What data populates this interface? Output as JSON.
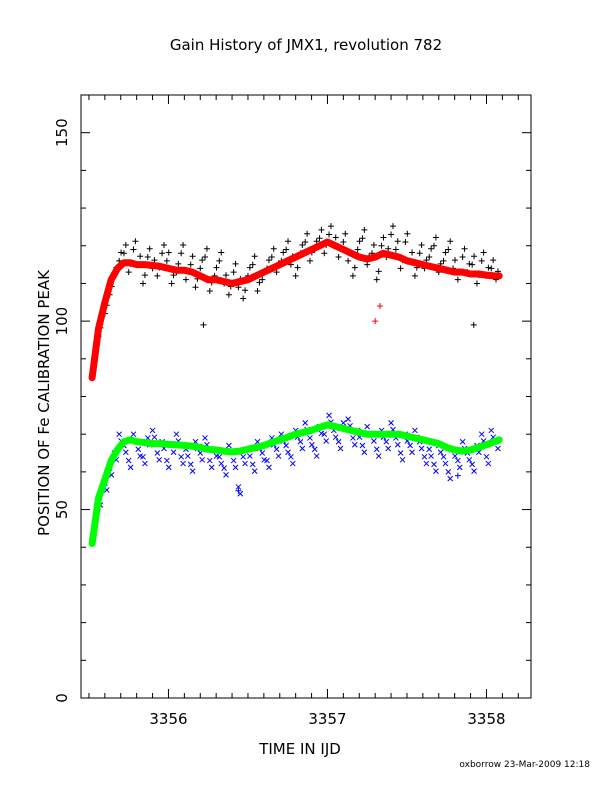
{
  "chart_data": {
    "type": "scatter",
    "title": "Gain History of JMX1, revolution 782",
    "xlabel": "TIME IN IJD",
    "ylabel": "POSITION OF Fe CALIBRATION PEAK",
    "xlim": [
      3355.45,
      3358.28
    ],
    "ylim": [
      0,
      160
    ],
    "xticks": [
      3356,
      3357,
      3358
    ],
    "yticks": [
      0,
      50,
      100,
      150
    ],
    "grid": false,
    "series": [
      {
        "marker": "+",
        "color": "#000000",
        "x": [
          3355.56,
          3355.6,
          3355.63,
          3355.66,
          3355.69,
          3355.72,
          3355.75,
          3355.78,
          3355.81,
          3355.84,
          3355.87,
          3355.9,
          3355.93,
          3355.96,
          3355.99,
          3356.02,
          3356.05,
          3356.08,
          3356.11,
          3356.14,
          3356.17,
          3356.2,
          3356.23,
          3356.26,
          3356.29,
          3356.32,
          3356.35,
          3356.38,
          3356.41,
          3356.44,
          3356.47,
          3356.5,
          3356.53,
          3356.56,
          3356.59,
          3356.62,
          3356.65,
          3356.68,
          3356.71,
          3356.74,
          3356.77,
          3356.8,
          3356.83,
          3356.86,
          3356.89,
          3356.92,
          3356.95,
          3356.98,
          3357.01,
          3357.04,
          3357.07,
          3357.1,
          3357.13,
          3357.16,
          3357.19,
          3357.22,
          3357.25,
          3357.28,
          3357.31,
          3357.34,
          3357.37,
          3357.4,
          3357.43,
          3357.46,
          3357.49,
          3357.52,
          3357.55,
          3357.58,
          3357.61,
          3357.64,
          3357.67,
          3357.7,
          3357.73,
          3357.76,
          3357.79,
          3357.82,
          3357.85,
          3357.88,
          3357.91,
          3357.94,
          3357.97,
          3358.0,
          3358.03,
          3358.06
        ],
        "y": [
          96,
          102,
          107,
          112,
          116,
          118,
          113,
          119,
          115,
          110,
          117,
          114,
          112,
          118,
          116,
          110,
          113,
          118,
          111,
          115,
          109,
          114,
          117,
          108,
          112,
          116,
          110,
          107,
          113,
          109,
          106,
          112,
          115,
          108,
          111,
          114,
          117,
          113,
          116,
          119,
          115,
          112,
          118,
          121,
          116,
          119,
          122,
          118,
          123,
          120,
          117,
          121,
          116,
          112,
          119,
          122,
          115,
          118,
          111,
          120,
          117,
          123,
          119,
          114,
          121,
          116,
          112,
          118,
          114,
          117,
          120,
          113,
          116,
          119,
          114,
          111,
          117,
          113,
          115,
          110,
          116,
          112,
          114,
          111
        ]
      },
      {
        "marker": "x",
        "color": "#0000ff",
        "x": [
          3355.56,
          3355.6,
          3355.63,
          3355.66,
          3355.69,
          3355.72,
          3355.75,
          3355.78,
          3355.81,
          3355.84,
          3355.87,
          3355.9,
          3355.93,
          3355.96,
          3355.99,
          3356.02,
          3356.05,
          3356.08,
          3356.11,
          3356.14,
          3356.17,
          3356.2,
          3356.23,
          3356.26,
          3356.29,
          3356.32,
          3356.35,
          3356.38,
          3356.41,
          3356.44,
          3356.47,
          3356.5,
          3356.53,
          3356.56,
          3356.59,
          3356.62,
          3356.65,
          3356.68,
          3356.71,
          3356.74,
          3356.77,
          3356.8,
          3356.83,
          3356.86,
          3356.89,
          3356.92,
          3356.95,
          3356.98,
          3357.01,
          3357.04,
          3357.07,
          3357.1,
          3357.13,
          3357.16,
          3357.19,
          3357.22,
          3357.25,
          3357.28,
          3357.31,
          3357.34,
          3357.37,
          3357.4,
          3357.43,
          3357.46,
          3357.49,
          3357.52,
          3357.55,
          3357.58,
          3357.61,
          3357.64,
          3357.67,
          3357.7,
          3357.73,
          3357.76,
          3357.79,
          3357.82,
          3357.85,
          3357.88,
          3357.91,
          3357.94,
          3357.97,
          3358.0,
          3358.03,
          3358.06
        ],
        "y": [
          53,
          57,
          61,
          65,
          70,
          67,
          63,
          70,
          66,
          64,
          69,
          71,
          65,
          68,
          63,
          67,
          70,
          64,
          66,
          62,
          68,
          65,
          69,
          63,
          66,
          64,
          61,
          67,
          63,
          56,
          64,
          66,
          62,
          68,
          65,
          63,
          69,
          66,
          70,
          67,
          64,
          71,
          68,
          73,
          69,
          66,
          72,
          70,
          75,
          71,
          68,
          73,
          74,
          69,
          71,
          67,
          72,
          70,
          66,
          71,
          68,
          73,
          69,
          65,
          70,
          67,
          71,
          68,
          64,
          66,
          62,
          67,
          64,
          60,
          66,
          63,
          68,
          65,
          62,
          67,
          70,
          64,
          71,
          68
        ]
      },
      {
        "marker": "filled",
        "color": "#ff0000",
        "x": [
          3355.52,
          3355.56,
          3355.6,
          3355.64,
          3355.68,
          3355.72,
          3355.76,
          3355.8,
          3355.85,
          3355.9,
          3355.95,
          3356.0,
          3356.05,
          3356.1,
          3356.15,
          3356.2,
          3356.25,
          3356.3,
          3356.35,
          3356.4,
          3356.45,
          3356.5,
          3356.55,
          3356.6,
          3356.65,
          3356.7,
          3356.75,
          3356.8,
          3356.85,
          3356.9,
          3356.95,
          3357.0,
          3357.05,
          3357.1,
          3357.15,
          3357.2,
          3357.25,
          3357.3,
          3357.35,
          3357.4,
          3357.45,
          3357.5,
          3357.55,
          3357.6,
          3357.65,
          3357.7,
          3357.75,
          3357.8,
          3357.85,
          3357.9,
          3357.95,
          3358.0,
          3358.05,
          3358.08
        ],
        "y": [
          85,
          98,
          105,
          111,
          114,
          115.5,
          115.5,
          115,
          115,
          114.8,
          114.5,
          114,
          113.5,
          113.5,
          113,
          112,
          111,
          111,
          110.5,
          110,
          110.5,
          111,
          112,
          113,
          114,
          115,
          116,
          117,
          118,
          119,
          120,
          121,
          120,
          119,
          118,
          117,
          116.5,
          117,
          118,
          117.5,
          117,
          116,
          115.5,
          115,
          114.5,
          114,
          113.5,
          113,
          113,
          112.5,
          112.5,
          112.2,
          112,
          112
        ]
      },
      {
        "marker": "filled",
        "color": "#00ff00",
        "x": [
          3355.52,
          3355.56,
          3355.6,
          3355.64,
          3355.68,
          3355.72,
          3355.76,
          3355.8,
          3355.85,
          3355.9,
          3355.95,
          3356.0,
          3356.05,
          3356.1,
          3356.15,
          3356.2,
          3356.25,
          3356.3,
          3356.35,
          3356.4,
          3356.45,
          3356.5,
          3356.55,
          3356.6,
          3356.65,
          3356.7,
          3356.75,
          3356.8,
          3356.85,
          3356.9,
          3356.95,
          3357.0,
          3357.05,
          3357.1,
          3357.15,
          3357.2,
          3357.25,
          3357.3,
          3357.35,
          3357.4,
          3357.45,
          3357.5,
          3357.55,
          3357.6,
          3357.65,
          3357.7,
          3357.75,
          3357.8,
          3357.85,
          3357.9,
          3357.95,
          3358.0,
          3358.05,
          3358.08
        ],
        "y": [
          41,
          53,
          58,
          63,
          66,
          68,
          68.5,
          68,
          67.8,
          67.5,
          67.5,
          67.3,
          67.2,
          67,
          66.8,
          66.5,
          66,
          65.8,
          65.5,
          65.3,
          65.5,
          66,
          66.5,
          67,
          67.8,
          68.5,
          69.2,
          70,
          70.5,
          71,
          71.8,
          72.5,
          72,
          71.5,
          71,
          70.5,
          70,
          70,
          70,
          70,
          70,
          69.5,
          69,
          68.5,
          68,
          67.5,
          66.5,
          65.8,
          65.5,
          65.8,
          66.5,
          67.2,
          68,
          68.5
        ]
      }
    ],
    "outliers": [
      {
        "x": 3357.3,
        "y": 100,
        "color": "#ff0000"
      },
      {
        "x": 3357.33,
        "y": 104,
        "color": "#ff0000"
      },
      {
        "x": 3356.22,
        "y": 99,
        "color": "#000000"
      },
      {
        "x": 3357.92,
        "y": 99,
        "color": "#000000"
      },
      {
        "x": 3356.44,
        "y": 55,
        "color": "#0000ff"
      },
      {
        "x": 3357.82,
        "y": 59,
        "color": "#0000ff"
      }
    ],
    "credit": "oxborrow 23-Mar-2009 12:18"
  }
}
